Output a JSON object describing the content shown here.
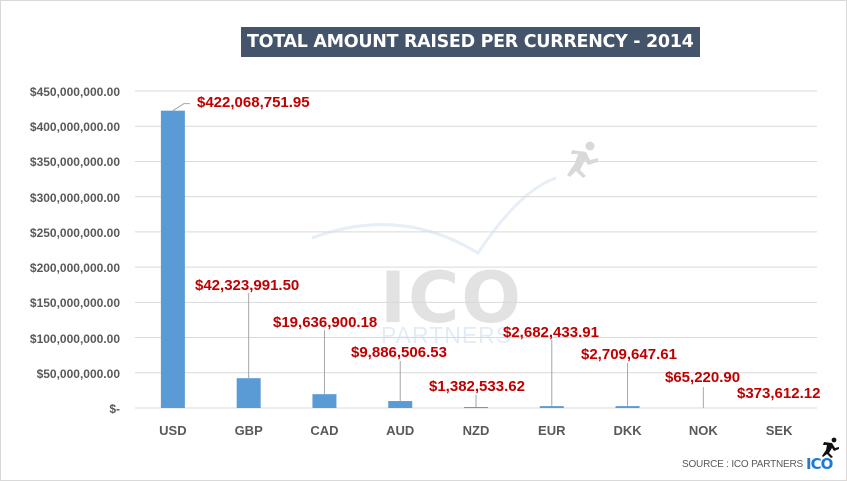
{
  "chart_data": {
    "type": "bar",
    "title": "TOTAL AMOUNT RAISED PER CURRENCY - 2014",
    "xlabel": "",
    "ylabel": "",
    "categories": [
      "USD",
      "GBP",
      "CAD",
      "AUD",
      "NZD",
      "EUR",
      "DKK",
      "NOK",
      "SEK"
    ],
    "values": [
      422068751.95,
      42323991.5,
      19636900.18,
      9886506.53,
      1382533.62,
      2682433.91,
      2709647.61,
      65220.9,
      373612.12
    ],
    "value_labels": [
      "$422,068,751.95",
      "$42,323,991.50",
      "$19,636,900.18",
      "$9,886,506.53",
      "$1,382,533.62",
      "$2,682,433.91",
      "$2,709,647.61",
      "$65,220.90",
      "$373,612.12"
    ],
    "ylim": [
      0,
      450000000
    ],
    "yticks": [
      0,
      50000000,
      100000000,
      150000000,
      200000000,
      250000000,
      300000000,
      350000000,
      400000000,
      450000000
    ],
    "ytick_labels": [
      "$-",
      "$50,000,000.00",
      "$100,000,000.00",
      "$150,000,000.00",
      "$200,000,000.00",
      "$250,000,000.00",
      "$300,000,000.00",
      "$350,000,000.00",
      "$400,000,000.00",
      "$450,000,000.00"
    ],
    "grid": true,
    "legend": null,
    "bar_color": "#5b9bd5",
    "label_color": "#c00000"
  },
  "watermark": {
    "logo": "ICO",
    "sub": "PARTNERS"
  },
  "footer": {
    "source": "SOURCE : ICO PARTNERS",
    "logo": "ICO"
  }
}
